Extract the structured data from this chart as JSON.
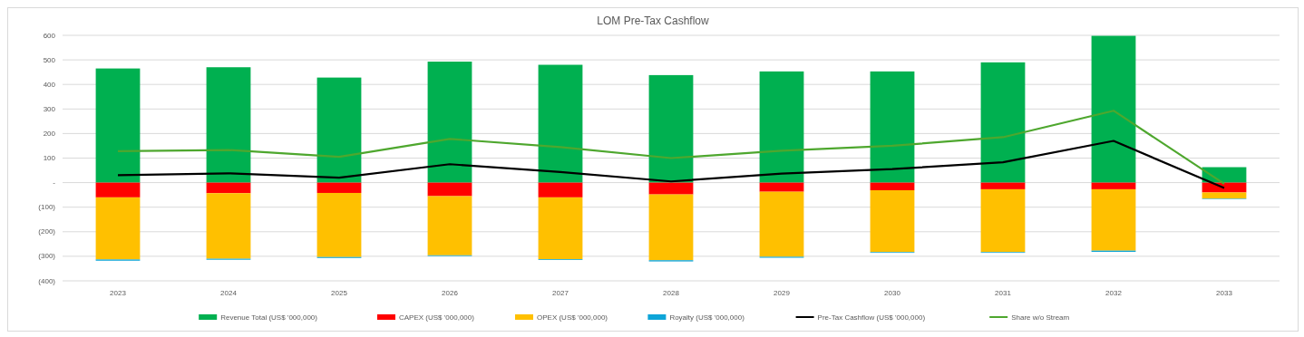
{
  "chart_data": {
    "type": "bar",
    "title": "LOM Pre-Tax Cashflow",
    "stacked": true,
    "categories": [
      "2023",
      "2024",
      "2025",
      "2026",
      "2027",
      "2028",
      "2029",
      "2030",
      "2031",
      "2032",
      "2033"
    ],
    "series": [
      {
        "name": "Revenue Total (US$ '000,000)",
        "color": "#00b050",
        "values": [
          465,
          470,
          428,
          493,
          480,
          438,
          453,
          453,
          490,
          598,
          63
        ]
      },
      {
        "name": "CAPEX (US$ '000,000)",
        "color": "#ff0000",
        "values": [
          -60,
          -43,
          -42,
          -55,
          -60,
          -48,
          -37,
          -31,
          -27,
          -27,
          -40
        ]
      },
      {
        "name": "OPEX (US$ '000,000)",
        "color": "#ffc000",
        "values": [
          -253,
          -267,
          -261,
          -241,
          -252,
          -268,
          -265,
          -252,
          -256,
          -250,
          -25
        ]
      },
      {
        "name": "Royalty (US$ '000,000)",
        "color": "#0ea5d8",
        "values": [
          -5,
          -4,
          -4,
          -3,
          -3,
          -5,
          -4,
          -3,
          -3,
          -5,
          -2
        ]
      },
      {
        "name": "Pre-Tax Cashflow (US$ '000,000)",
        "type": "line",
        "color": "#000000",
        "values": [
          30,
          38,
          20,
          75,
          43,
          5,
          37,
          55,
          83,
          170,
          -22
        ]
      },
      {
        "name": "Share w/o Stream",
        "type": "line",
        "color": "#4ea72e",
        "values": [
          128,
          133,
          105,
          178,
          145,
          100,
          130,
          150,
          185,
          293,
          -5
        ]
      }
    ],
    "ylim": [
      -400,
      600
    ],
    "yticks": [
      {
        "value": -400,
        "label": "(400)"
      },
      {
        "value": -300,
        "label": "(300)"
      },
      {
        "value": -200,
        "label": "(200)"
      },
      {
        "value": -100,
        "label": "(100)"
      },
      {
        "value": 0,
        "label": "-"
      },
      100,
      200,
      300,
      400,
      500,
      600
    ],
    "grid": "y",
    "legend": "bottom",
    "marker": "none",
    "line_style": "solid"
  }
}
